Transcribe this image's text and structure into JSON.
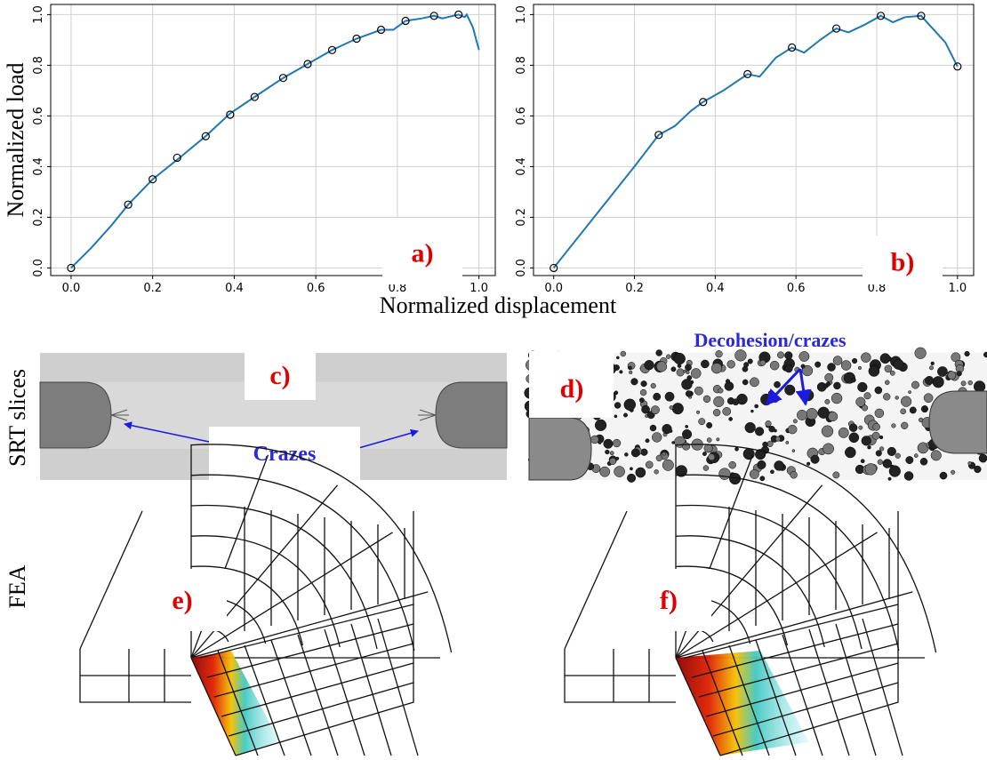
{
  "chart_data": [
    {
      "type": "line",
      "label": "a)",
      "ylabel": "Normalized load",
      "xlim": [
        -0.05,
        1.04
      ],
      "ylim": [
        -0.03,
        1.04
      ],
      "xticks": [
        {
          "value": 0,
          "label": "0.0"
        },
        {
          "value": 0.2,
          "label": "0.2"
        },
        {
          "value": 0.4,
          "label": "0.4"
        },
        {
          "value": 0.6,
          "label": "0.6"
        },
        {
          "value": 0.8,
          "label": "0.8"
        },
        {
          "value": 1,
          "label": "1.0"
        }
      ],
      "yticks": [
        {
          "value": 0,
          "label": "0.0"
        },
        {
          "value": 0.2,
          "label": "0.2"
        },
        {
          "value": 0.4,
          "label": "0.4"
        },
        {
          "value": 0.6,
          "label": "0.6"
        },
        {
          "value": 0.8,
          "label": "0.8"
        },
        {
          "value": 1,
          "label": "1.0"
        }
      ],
      "grid": true,
      "series": [
        {
          "color": "#1f77b4",
          "x": [
            0,
            0.05,
            0.1,
            0.14,
            0.2,
            0.27,
            0.33,
            0.39,
            0.45,
            0.52,
            0.58,
            0.64,
            0.7,
            0.76,
            0.79,
            0.82,
            0.86,
            0.89,
            0.91,
            0.95,
            0.965,
            0.97,
            0.985,
            1.0
          ],
          "values": [
            0,
            0.08,
            0.17,
            0.25,
            0.35,
            0.44,
            0.52,
            0.61,
            0.675,
            0.75,
            0.805,
            0.86,
            0.905,
            0.94,
            0.94,
            0.975,
            0.985,
            0.995,
            0.985,
            1.0,
            0.99,
            1.0,
            0.95,
            0.86
          ]
        },
        {
          "color": "#000000",
          "marker": "circle",
          "x": [
            0,
            0.14,
            0.2,
            0.26,
            0.33,
            0.39,
            0.45,
            0.52,
            0.58,
            0.64,
            0.7,
            0.76,
            0.82,
            0.89,
            0.95
          ],
          "values": [
            0,
            0.25,
            0.35,
            0.435,
            0.52,
            0.605,
            0.675,
            0.75,
            0.805,
            0.86,
            0.905,
            0.94,
            0.975,
            0.995,
            1.0
          ]
        }
      ]
    },
    {
      "type": "line",
      "label": "b)",
      "xlim": [
        -0.05,
        1.04
      ],
      "ylim": [
        -0.03,
        1.04
      ],
      "xticks": [
        {
          "value": 0,
          "label": "0.0"
        },
        {
          "value": 0.2,
          "label": "0.2"
        },
        {
          "value": 0.4,
          "label": "0.4"
        },
        {
          "value": 0.6,
          "label": "0.6"
        },
        {
          "value": 0.8,
          "label": "0.8"
        },
        {
          "value": 1,
          "label": "1.0"
        }
      ],
      "yticks": [
        {
          "value": 0,
          "label": "0.0"
        },
        {
          "value": 0.2,
          "label": "0.2"
        },
        {
          "value": 0.4,
          "label": "0.4"
        },
        {
          "value": 0.6,
          "label": "0.6"
        },
        {
          "value": 0.8,
          "label": "0.8"
        },
        {
          "value": 1,
          "label": "1.0"
        }
      ],
      "grid": true,
      "series": [
        {
          "color": "#1f77b4",
          "x": [
            0,
            0.1,
            0.2,
            0.26,
            0.3,
            0.34,
            0.37,
            0.42,
            0.48,
            0.51,
            0.55,
            0.59,
            0.62,
            0.66,
            0.7,
            0.73,
            0.77,
            0.81,
            0.84,
            0.87,
            0.91,
            0.93,
            0.97,
            1.0
          ],
          "values": [
            0,
            0.2,
            0.4,
            0.525,
            0.56,
            0.62,
            0.655,
            0.7,
            0.765,
            0.755,
            0.83,
            0.87,
            0.85,
            0.9,
            0.945,
            0.93,
            0.96,
            0.995,
            0.97,
            0.99,
            0.995,
            0.96,
            0.89,
            0.795
          ]
        },
        {
          "color": "#000000",
          "marker": "circle",
          "x": [
            0,
            0.26,
            0.37,
            0.48,
            0.59,
            0.7,
            0.81,
            0.91,
            1.0
          ],
          "values": [
            0,
            0.525,
            0.655,
            0.765,
            0.87,
            0.945,
            0.995,
            0.995,
            0.795
          ]
        }
      ]
    }
  ],
  "xlabel": "Normalized displacement",
  "row_labels": [
    "SRT slices",
    "FEA"
  ],
  "panels": {
    "c": "c)",
    "d": "d)",
    "e": "e)",
    "f": "f)"
  },
  "annotations": {
    "crazes": "Crazes",
    "decohesion": "Decohesion/crazes"
  }
}
